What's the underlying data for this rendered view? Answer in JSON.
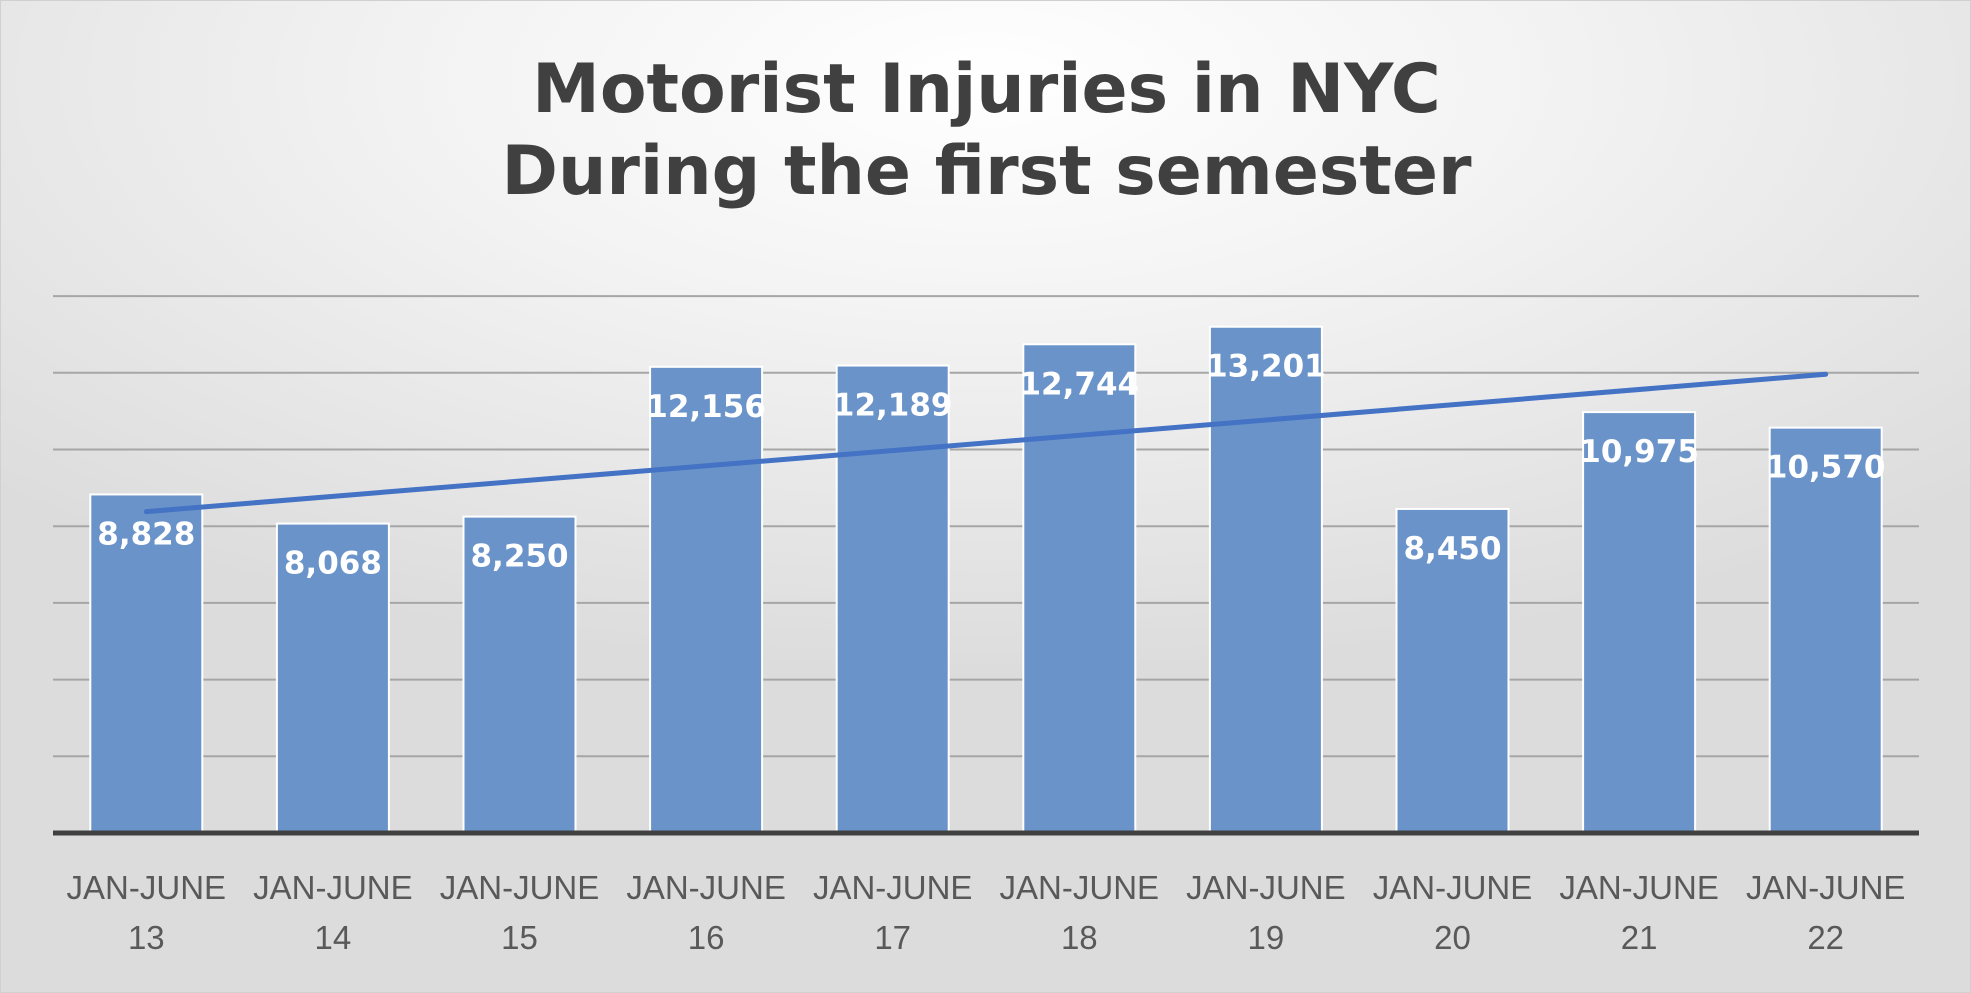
{
  "chart_data": {
    "type": "bar",
    "title": [
      "Motorist Injuries in NYC",
      "During the first semester"
    ],
    "xlabel": "",
    "ylabel": "",
    "categories": [
      [
        "JAN-JUNE",
        "13"
      ],
      [
        "JAN-JUNE",
        "14"
      ],
      [
        "JAN-JUNE",
        "15"
      ],
      [
        "JAN-JUNE",
        "16"
      ],
      [
        "JAN-JUNE",
        "17"
      ],
      [
        "JAN-JUNE",
        "18"
      ],
      [
        "JAN-JUNE",
        "19"
      ],
      [
        "JAN-JUNE",
        "20"
      ],
      [
        "JAN-JUNE",
        "21"
      ],
      [
        "JAN-JUNE",
        "22"
      ]
    ],
    "values": [
      8828,
      8068,
      8250,
      12156,
      12189,
      12744,
      13201,
      8450,
      10975,
      10570
    ],
    "data_labels": [
      "8,828",
      "8,068",
      "8,250",
      "12,156",
      "12,189",
      "12,744",
      "13,201",
      "8,450",
      "10,975",
      "10,570"
    ],
    "ylim": [
      0,
      14000
    ],
    "gridlines": [
      2000,
      4000,
      6000,
      8000,
      10000,
      12000,
      14000
    ],
    "grid": true,
    "legend": "none",
    "trendline": {
      "type": "linear",
      "start": 8380,
      "end": 11963
    },
    "colors": {
      "bar": "#6a93c9",
      "bar_border": "#ffffff",
      "trendline": "#4472c4",
      "gridline": "#a6a6a6",
      "axis": "#404040"
    }
  }
}
